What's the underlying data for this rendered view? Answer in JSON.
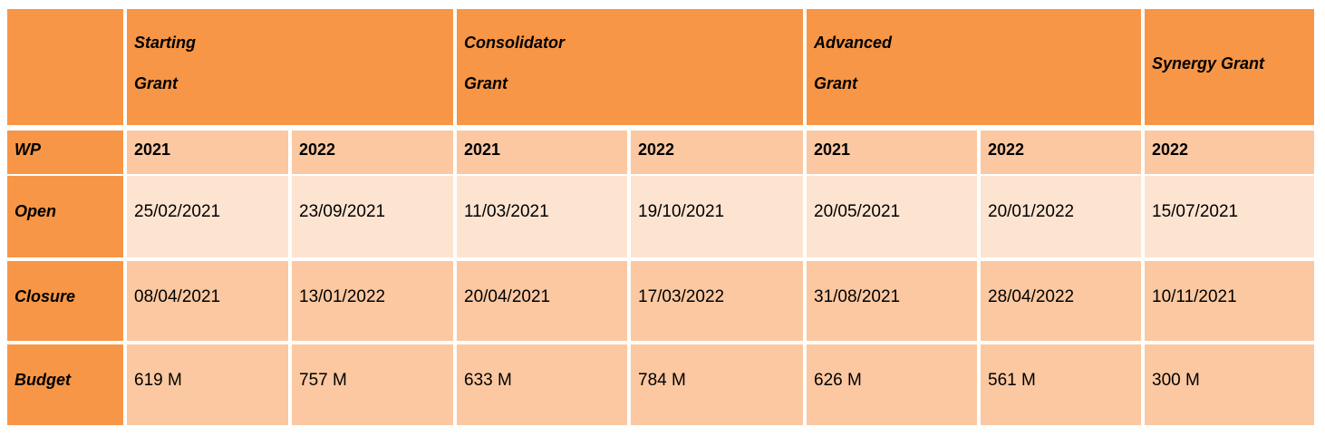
{
  "header": {
    "groups": [
      {
        "line1": "Starting",
        "line2": "Grant"
      },
      {
        "line1": "Consolidator",
        "line2": "Grant"
      },
      {
        "line1": "Advanced",
        "line2": "Grant"
      },
      {
        "line1": "Synergy Grant",
        "line2": ""
      }
    ]
  },
  "rows": [
    {
      "label": "WP",
      "values": [
        "2021",
        "2022",
        "2021",
        "2022",
        "2021",
        "2022",
        "2022"
      ]
    },
    {
      "label": "Open",
      "values": [
        "25/02/2021",
        "23/09/2021",
        "11/03/2021",
        "19/10/2021",
        "20/05/2021",
        "20/01/2022",
        "15/07/2021"
      ]
    },
    {
      "label": "Closure",
      "values": [
        "08/04/2021",
        "13/01/2022",
        "20/04/2021",
        "17/03/2022",
        "31/08/2021",
        "28/04/2022",
        "10/11/2021"
      ]
    },
    {
      "label": "Budget",
      "values": [
        "619 M",
        "757 M",
        "633 M",
        "784 M",
        "626 M",
        "561 M",
        "300 M"
      ]
    }
  ],
  "colors": {
    "header": "#f79646",
    "light": "#fde4d1",
    "mid": "#fbc8a1"
  }
}
